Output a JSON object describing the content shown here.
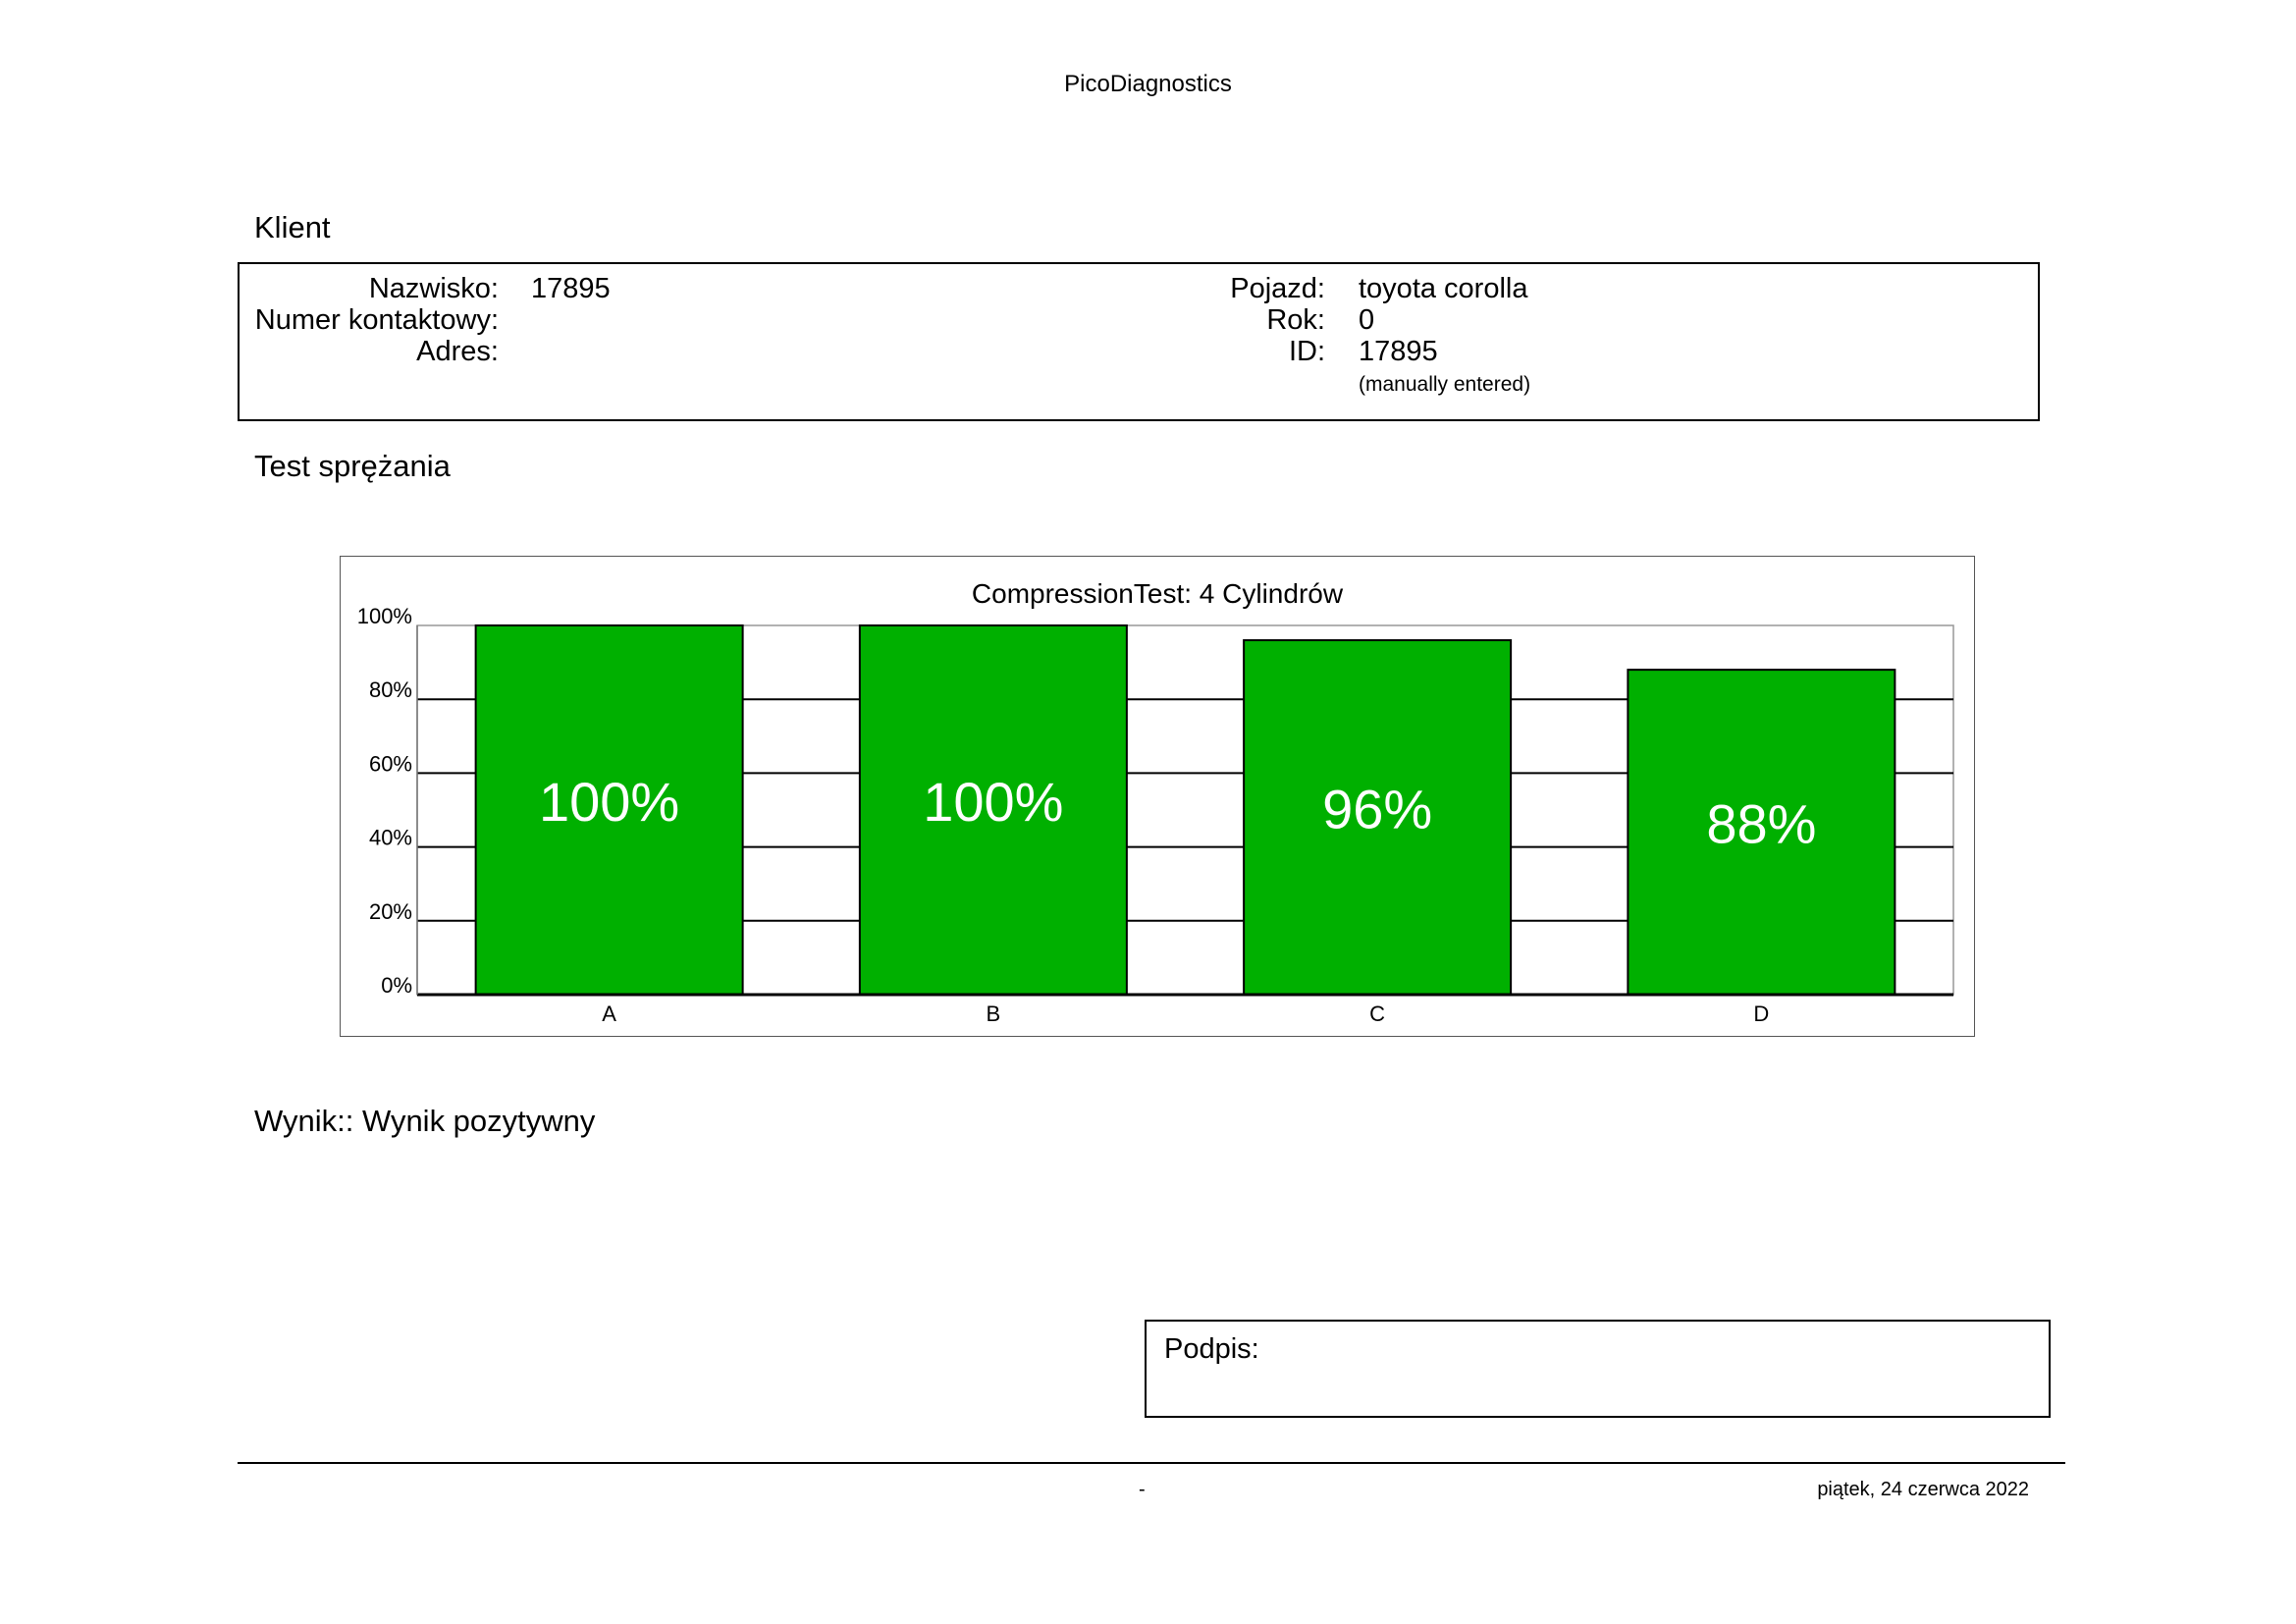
{
  "header": {
    "app_title": "PicoDiagnostics"
  },
  "client": {
    "section_title": "Klient",
    "left_labels": [
      "Nazwisko:",
      "Numer kontaktowy:",
      "Adres:"
    ],
    "left_values": [
      "17895",
      "",
      ""
    ],
    "right_labels": [
      "Pojazd:",
      "Rok:",
      "ID:"
    ],
    "right_values": [
      "toyota corolla",
      "0",
      "17895"
    ],
    "id_note": "(manually entered)"
  },
  "test": {
    "section_title": "Test sprężania"
  },
  "chart_data": {
    "type": "bar",
    "title": "CompressionTest: 4 Cylindrów",
    "categories": [
      "A",
      "B",
      "C",
      "D"
    ],
    "values": [
      100,
      100,
      96,
      88
    ],
    "data_labels": [
      "100%",
      "100%",
      "96%",
      "88%"
    ],
    "ylim": [
      0,
      100
    ],
    "yticks": [
      0,
      20,
      40,
      60,
      80,
      100
    ],
    "ytick_labels": [
      "0%",
      "20%",
      "40%",
      "60%",
      "80%",
      "100%"
    ],
    "grid": true,
    "bar_color": "#00B000"
  },
  "result": {
    "text": "Wynik:: Wynik pozytywny"
  },
  "signature": {
    "label": "Podpis:"
  },
  "footer": {
    "center": "-",
    "date": "piątek, 24 czerwca 2022"
  }
}
